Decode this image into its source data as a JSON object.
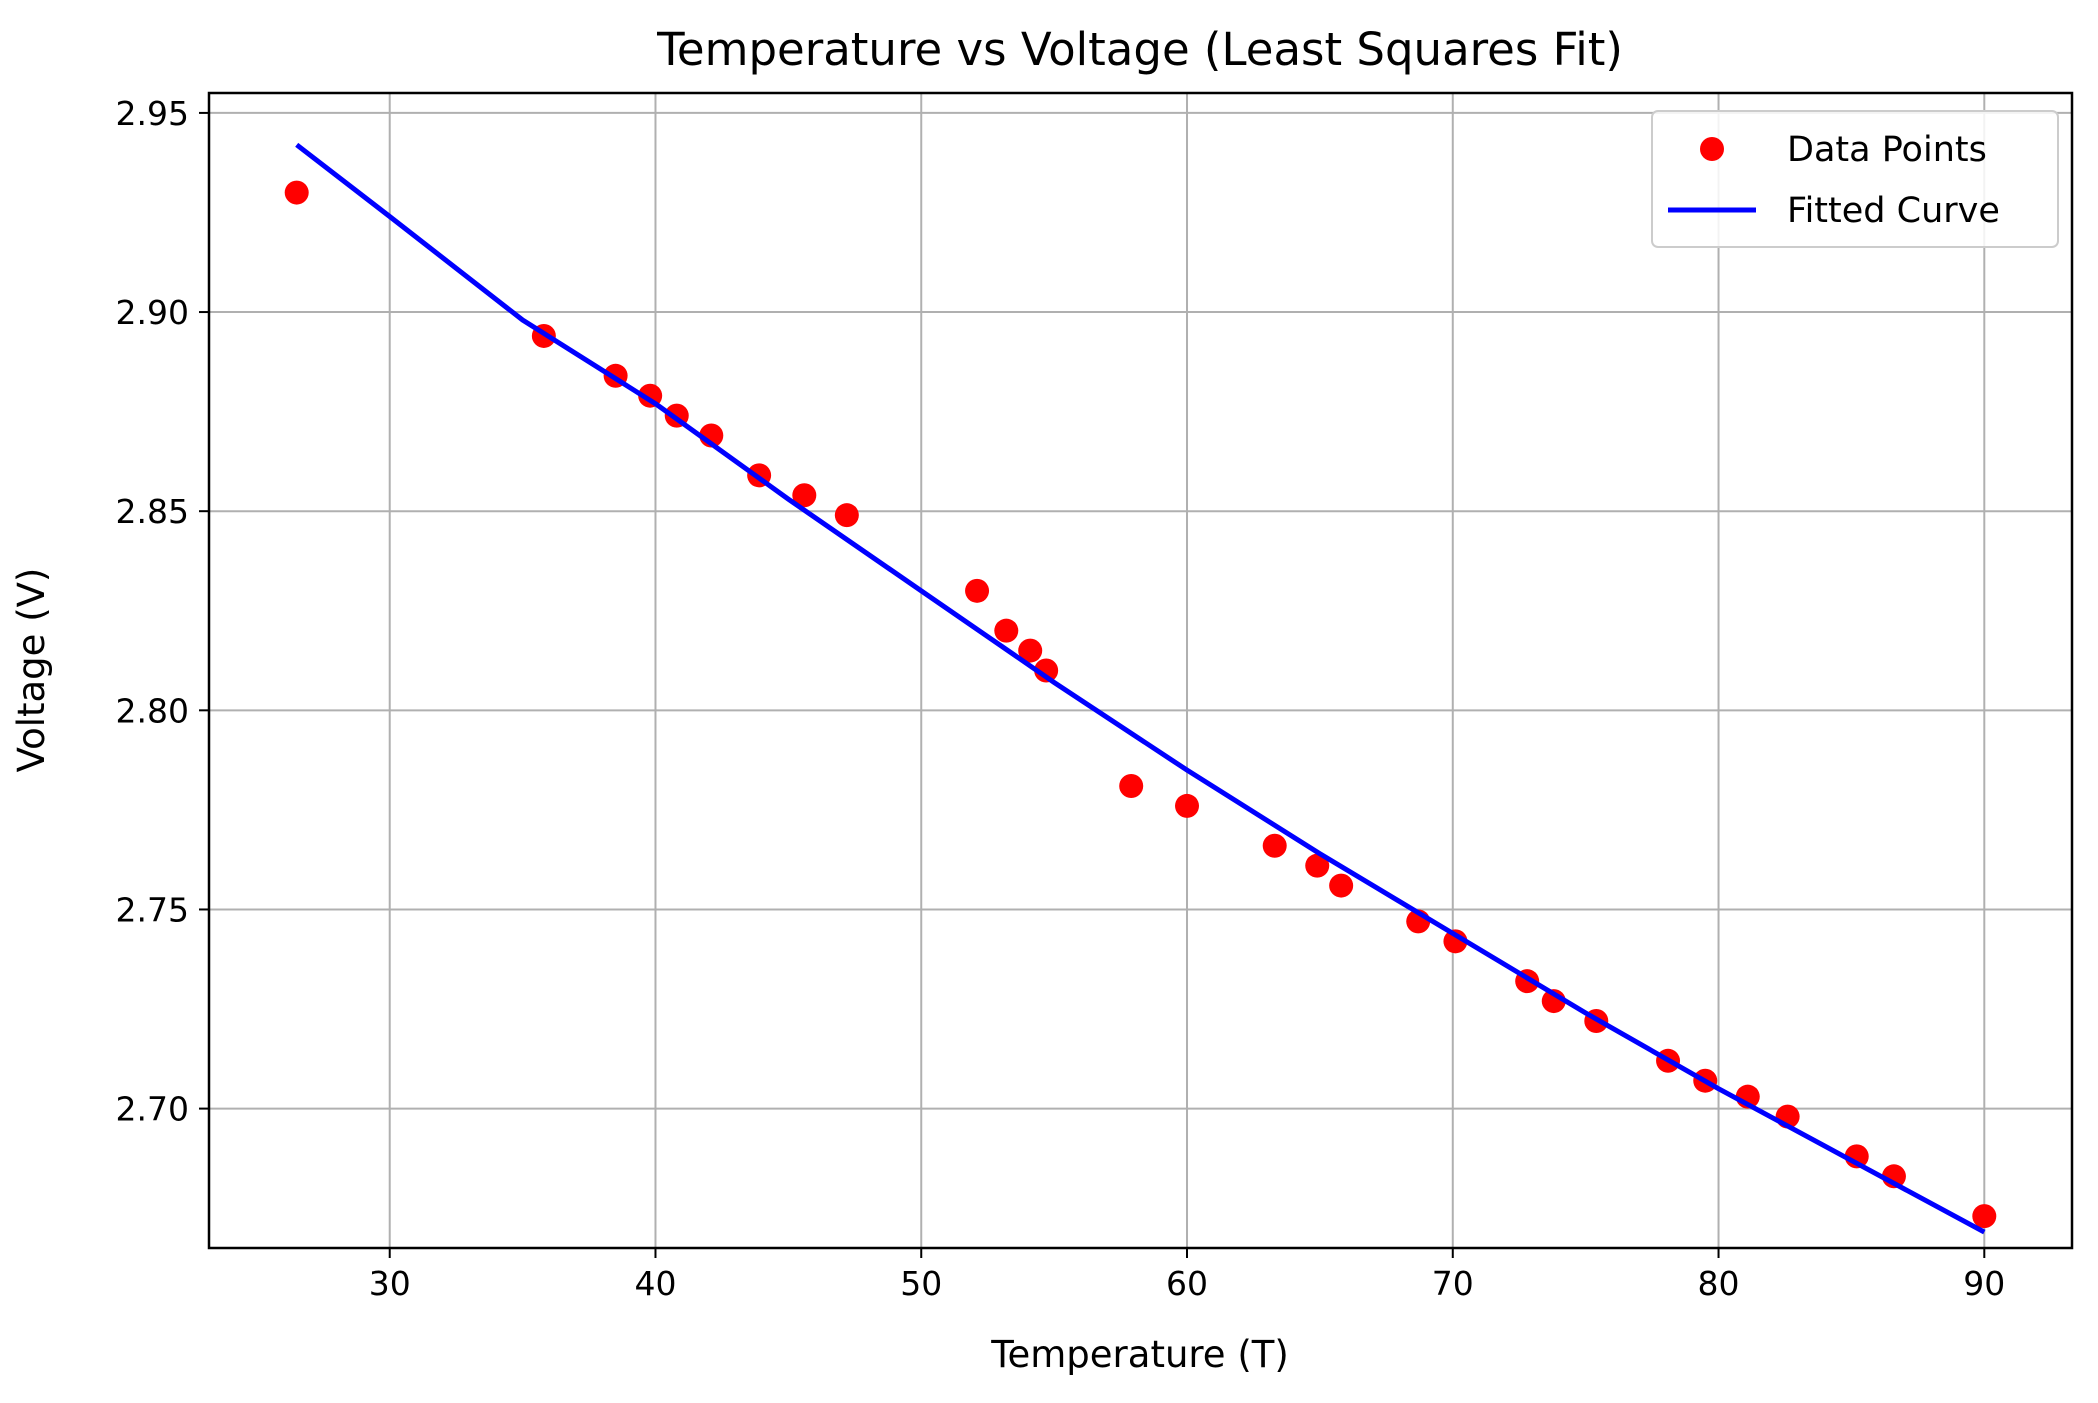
{
  "chart_data": {
    "type": "scatter",
    "title": "Temperature vs Voltage (Least Squares Fit)",
    "xlabel": "Temperature (T)",
    "ylabel": "Voltage (V)",
    "xlim": [
      23.2,
      93.3
    ],
    "ylim": [
      2.665,
      2.955
    ],
    "xticks": [
      30,
      40,
      50,
      60,
      70,
      80,
      90
    ],
    "xtick_labels": [
      "30",
      "40",
      "50",
      "60",
      "70",
      "80",
      "90"
    ],
    "yticks": [
      2.7,
      2.75,
      2.8,
      2.85,
      2.9,
      2.95
    ],
    "ytick_labels": [
      "2.70",
      "2.75",
      "2.80",
      "2.85",
      "2.90",
      "2.95"
    ],
    "grid": true,
    "legend_position": "top-right",
    "series": [
      {
        "name": "Data Points",
        "type": "scatter",
        "color": "#ff0000",
        "x": [
          26.5,
          35.8,
          38.5,
          39.8,
          40.8,
          42.1,
          43.9,
          45.6,
          47.2,
          52.1,
          53.2,
          54.1,
          54.7,
          57.9,
          60.0,
          63.3,
          64.9,
          65.8,
          68.7,
          70.1,
          72.8,
          73.8,
          75.4,
          78.1,
          79.5,
          81.1,
          82.6,
          85.2,
          86.6,
          90.0
        ],
        "y": [
          2.93,
          2.894,
          2.884,
          2.879,
          2.874,
          2.869,
          2.859,
          2.854,
          2.849,
          2.83,
          2.82,
          2.815,
          2.81,
          2.781,
          2.776,
          2.766,
          2.761,
          2.756,
          2.747,
          2.742,
          2.732,
          2.727,
          2.722,
          2.712,
          2.707,
          2.703,
          2.698,
          2.688,
          2.683,
          2.673
        ]
      },
      {
        "name": "Fitted Curve",
        "type": "line",
        "color": "#0000ff",
        "x": [
          26.5,
          30,
          35,
          40,
          45,
          50,
          55,
          60,
          65,
          70,
          75,
          80,
          85,
          90
        ],
        "y": [
          2.942,
          2.924,
          2.898,
          2.877,
          2.853,
          2.83,
          2.807,
          2.785,
          2.764,
          2.744,
          2.724,
          2.705,
          2.687,
          2.669
        ]
      }
    ]
  }
}
